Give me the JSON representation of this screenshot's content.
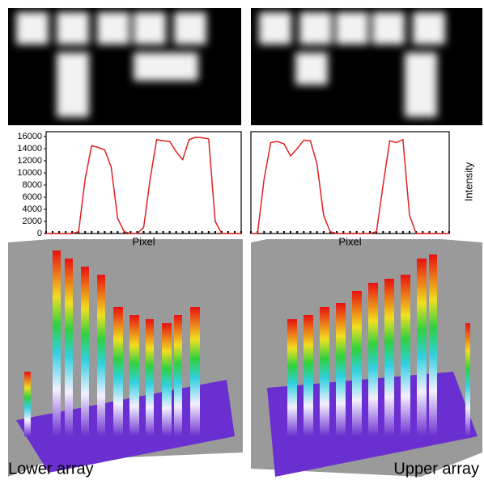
{
  "chart_data": [
    {
      "type": "line",
      "color": "#e02020",
      "values": [
        0,
        0,
        0,
        0,
        0,
        300,
        9000,
        14500,
        14200,
        13800,
        11000,
        2500,
        300,
        0,
        0,
        1000,
        9000,
        15500,
        15300,
        15200,
        13500,
        12200,
        15500,
        15900,
        15800,
        15600,
        2000,
        0,
        0,
        0,
        0
      ],
      "ylim": [
        0,
        16000
      ],
      "yticks": [
        0,
        2000,
        4000,
        6000,
        8000,
        10000,
        12000,
        14000,
        16000
      ],
      "xlabel": "Pixel"
    },
    {
      "type": "line",
      "color": "#e02020",
      "values": [
        0,
        0,
        9000,
        15000,
        15200,
        14800,
        12800,
        14000,
        15400,
        15300,
        11500,
        3000,
        300,
        0,
        0,
        0,
        0,
        0,
        0,
        300,
        8000,
        15300,
        15000,
        15500,
        3000,
        0,
        0,
        0,
        0,
        0,
        0
      ],
      "ylim": [
        0,
        16000
      ],
      "xlabel": "Pixel",
      "ylabel": "Intensity"
    }
  ],
  "labels": {
    "lower": "Lower array",
    "upper": "Upper array"
  }
}
